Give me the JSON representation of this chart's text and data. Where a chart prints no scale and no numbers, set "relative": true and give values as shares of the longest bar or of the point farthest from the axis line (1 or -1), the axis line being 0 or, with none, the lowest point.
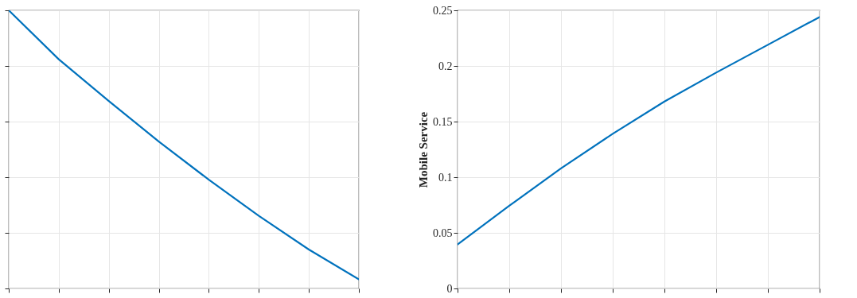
{
  "chart_data": [
    {
      "type": "line",
      "relative": true,
      "categories": [
        null,
        null,
        null,
        null,
        null,
        null,
        null,
        null
      ],
      "series": [
        {
          "color": "#0072bd",
          "values": [
            1,
            0.824,
            0.674,
            0.528,
            0.391,
            0.261,
            0.14,
            0.033
          ]
        }
      ],
      "grid": true,
      "tick_labels": false
    },
    {
      "type": "line",
      "ylabel": "Mobile Service",
      "categories": [
        null,
        null,
        null,
        null,
        null,
        null,
        null,
        null
      ],
      "series": [
        {
          "color": "#0072bd",
          "values": [
            0.0396,
            0.0743,
            0.108,
            0.139,
            0.168,
            0.194,
            0.219,
            0.244
          ]
        }
      ],
      "ylim": [
        0,
        0.25
      ],
      "yticks": [
        0,
        0.05,
        0.1,
        0.15,
        0.2,
        0.25
      ],
      "grid": true,
      "tick_labels": "y"
    }
  ]
}
